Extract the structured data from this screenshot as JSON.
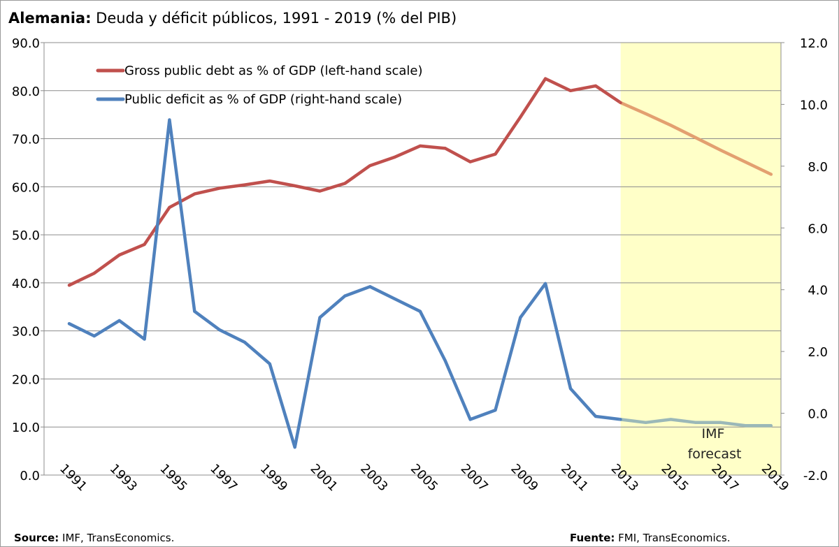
{
  "title": {
    "bold": "Alemania:",
    "rest": " Deuda y déficit públicos, 1991 - 2019 (% del PIB)"
  },
  "footer": {
    "source_label": "Source:",
    "source_text": " IMF, TransEconomics.",
    "fuente_label": "Fuente:",
    "fuente_text": " FMI, TransEconomics."
  },
  "colors": {
    "debt": "#C0504D",
    "debt_forecast": "#E3A070",
    "deficit": "#4F81BD",
    "deficit_forecast": "#9BB8B8",
    "forecast_band": "#FFFFC8",
    "grid": "#8c8c8c"
  },
  "chart_data": {
    "type": "line",
    "x": [
      1991,
      1992,
      1993,
      1994,
      1995,
      1996,
      1997,
      1998,
      1999,
      2000,
      2001,
      2002,
      2003,
      2004,
      2005,
      2006,
      2007,
      2008,
      2009,
      2010,
      2011,
      2012,
      2013,
      2014,
      2015,
      2016,
      2017,
      2018,
      2019
    ],
    "x_tick_labels": [
      "1991",
      "1993",
      "1995",
      "1997",
      "1999",
      "2001",
      "2003",
      "2005",
      "2007",
      "2009",
      "2011",
      "2013",
      "2015",
      "2017",
      "2019"
    ],
    "ylim_left": [
      0,
      90
    ],
    "ylim_right": [
      -2,
      12
    ],
    "y_left_ticks": [
      "0.0",
      "10.0",
      "20.0",
      "30.0",
      "40.0",
      "50.0",
      "60.0",
      "70.0",
      "80.0",
      "90.0"
    ],
    "y_right_ticks": [
      "-2.0",
      "0.0",
      "2.0",
      "4.0",
      "6.0",
      "8.0",
      "10.0",
      "12.0"
    ],
    "grid": "horizontal",
    "legend_position": "top-left",
    "forecast_start": 2013,
    "series": [
      {
        "name": "Gross public debt as % of GDP (left-hand scale)",
        "axis": "left",
        "values": [
          39.5,
          42.0,
          45.8,
          48.0,
          55.7,
          58.5,
          59.7,
          60.4,
          61.2,
          60.2,
          59.1,
          60.7,
          64.4,
          66.2,
          68.5,
          68.0,
          65.2,
          66.8,
          74.5,
          82.5,
          80.0,
          81.0,
          77.5,
          75.2,
          72.8,
          70.2,
          67.6,
          65.1,
          62.6
        ]
      },
      {
        "name": "Public deficit as % of GDP (right-hand scale)",
        "axis": "right",
        "values": [
          2.9,
          2.5,
          3.0,
          2.4,
          9.5,
          3.3,
          2.7,
          2.3,
          1.6,
          -1.1,
          3.1,
          3.8,
          4.1,
          3.7,
          3.3,
          1.7,
          -0.2,
          0.1,
          3.1,
          4.2,
          0.8,
          -0.1,
          -0.2,
          -0.3,
          -0.2,
          -0.3,
          -0.3,
          -0.4,
          -0.4
        ]
      }
    ],
    "annotation": [
      "IMF",
      "forecast"
    ]
  }
}
